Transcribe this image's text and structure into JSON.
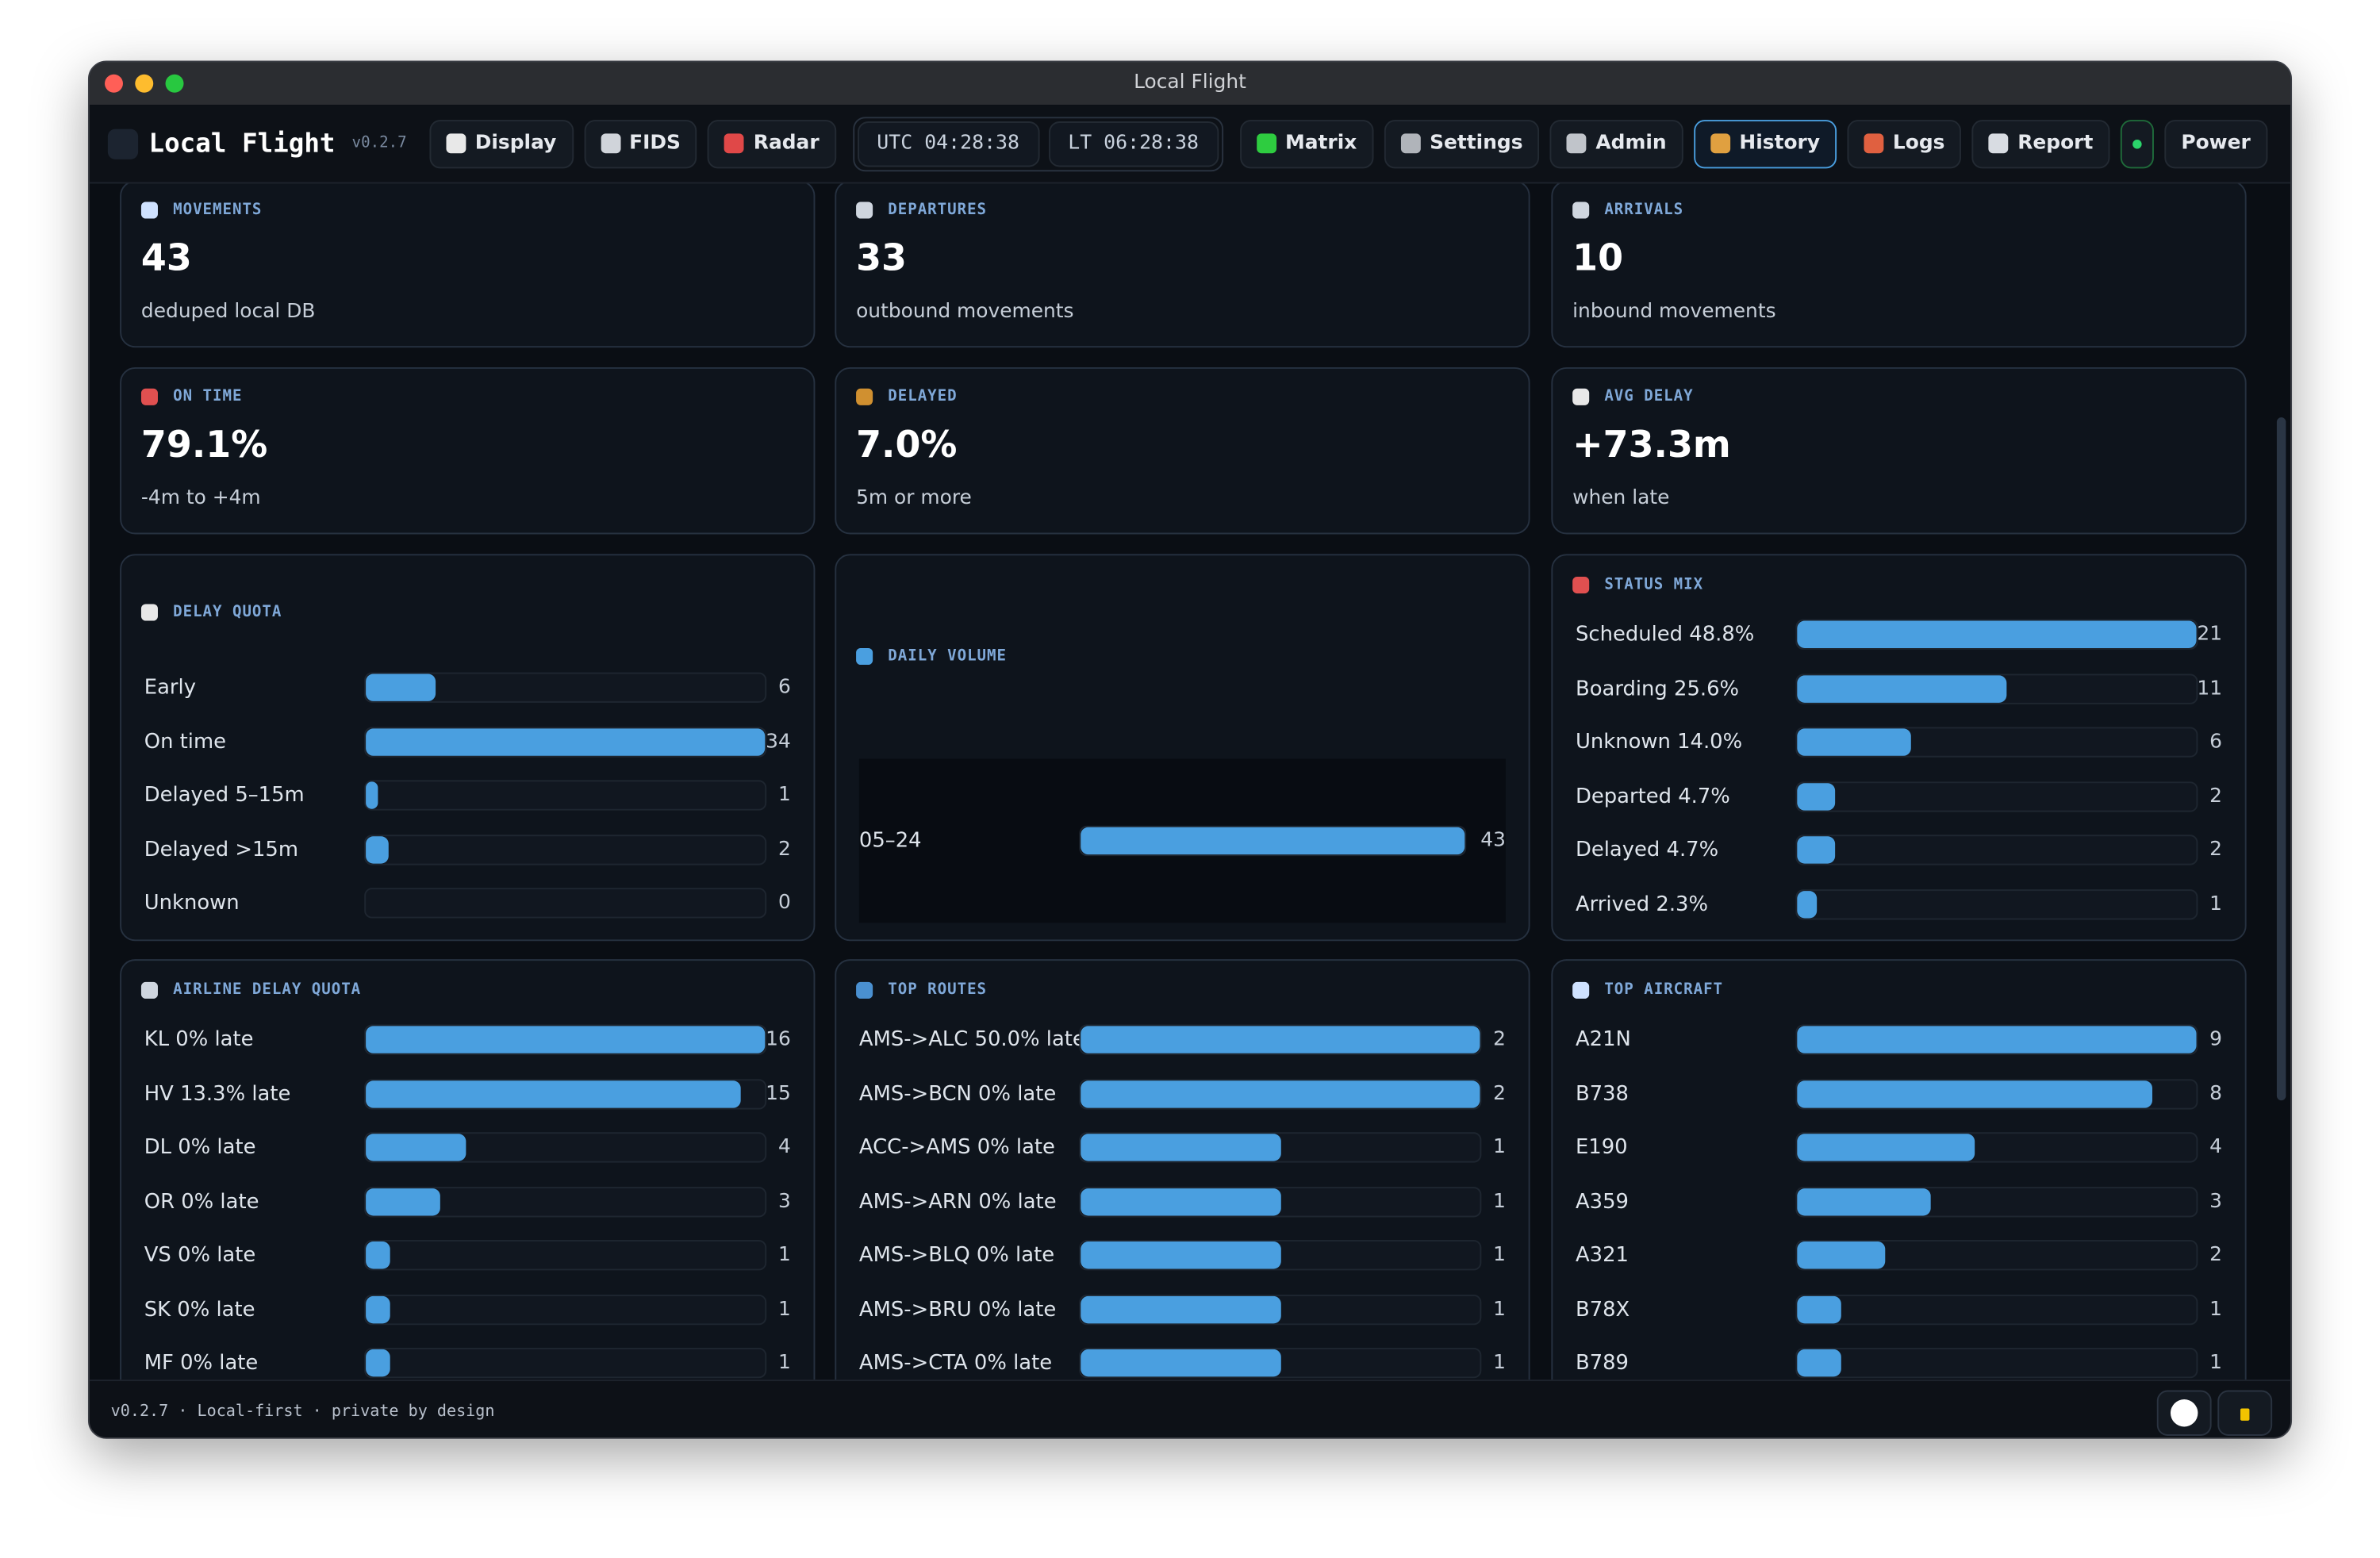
{
  "window_title": "Local Flight",
  "nav": {
    "brand": "Local Flight",
    "version": "v0.2.7",
    "buttons": [
      "Display",
      "FIDS",
      "Radar"
    ],
    "clocks": [
      "UTC 04:28:38",
      "LT 06:28:38"
    ],
    "buttons2": [
      "Matrix",
      "Settings",
      "Admin",
      "History",
      "Logs",
      "Report"
    ],
    "power": "Power"
  },
  "stats": [
    {
      "label": "MOVEMENTS",
      "value": "43",
      "note": "deduped local DB"
    },
    {
      "label": "DEPARTURES",
      "value": "33",
      "note": "outbound movements"
    },
    {
      "label": "ARRIVALS",
      "value": "10",
      "note": "inbound movements"
    },
    {
      "label": "ON TIME",
      "value": "79.1%",
      "note": "-4m to +4m"
    },
    {
      "label": "DELAYED",
      "value": "7.0%",
      "note": "5m or more"
    },
    {
      "label": "AVG DELAY",
      "value": "+73.3m",
      "note": "when late"
    }
  ],
  "panels": [
    {
      "title": "DELAY QUOTA",
      "rows": [
        {
          "label": "Early",
          "value": 6
        },
        {
          "label": "On time",
          "value": 34
        },
        {
          "label": "Delayed 5–15m",
          "value": 1
        },
        {
          "label": "Delayed >15m",
          "value": 2
        },
        {
          "label": "Unknown",
          "value": 0
        }
      ]
    },
    {
      "title": "DAILY VOLUME",
      "rows": [
        {
          "label": "05–24",
          "value": 43
        }
      ]
    },
    {
      "title": "STATUS MIX",
      "rows": [
        {
          "label": "Scheduled 48.8%",
          "value": 21
        },
        {
          "label": "Boarding 25.6%",
          "value": 11
        },
        {
          "label": "Unknown 14.0%",
          "value": 6
        },
        {
          "label": "Departed 4.7%",
          "value": 2
        },
        {
          "label": "Delayed 4.7%",
          "value": 2
        },
        {
          "label": "Arrived 2.3%",
          "value": 1
        }
      ]
    },
    {
      "title": "AIRLINE DELAY QUOTA",
      "rows": [
        {
          "label": "KL 0% late",
          "value": 16
        },
        {
          "label": "HV 13.3% late",
          "value": 15
        },
        {
          "label": "DL 0% late",
          "value": 4
        },
        {
          "label": "OR 0% late",
          "value": 3
        },
        {
          "label": "VS 0% late",
          "value": 1
        },
        {
          "label": "SK 0% late",
          "value": 1
        },
        {
          "label": "MF 0% late",
          "value": 1
        }
      ]
    },
    {
      "title": "TOP ROUTES",
      "rows": [
        {
          "label": "AMS->ALC 50.0% late",
          "value": 2
        },
        {
          "label": "AMS->BCN 0% late",
          "value": 2
        },
        {
          "label": "ACC->AMS 0% late",
          "value": 1
        },
        {
          "label": "AMS->ARN 0% late",
          "value": 1
        },
        {
          "label": "AMS->BLQ 0% late",
          "value": 1
        },
        {
          "label": "AMS->BRU 0% late",
          "value": 1
        },
        {
          "label": "AMS->CTA 0% late",
          "value": 1
        }
      ]
    },
    {
      "title": "TOP AIRCRAFT",
      "rows": [
        {
          "label": "A21N",
          "value": 9
        },
        {
          "label": "B738",
          "value": 8
        },
        {
          "label": "E190",
          "value": 4
        },
        {
          "label": "A359",
          "value": 3
        },
        {
          "label": "A321",
          "value": 2
        },
        {
          "label": "B78X",
          "value": 1
        },
        {
          "label": "B789",
          "value": 1
        }
      ]
    }
  ],
  "footer": {
    "text": "v0.2.7 · Local-first · private by design"
  }
}
